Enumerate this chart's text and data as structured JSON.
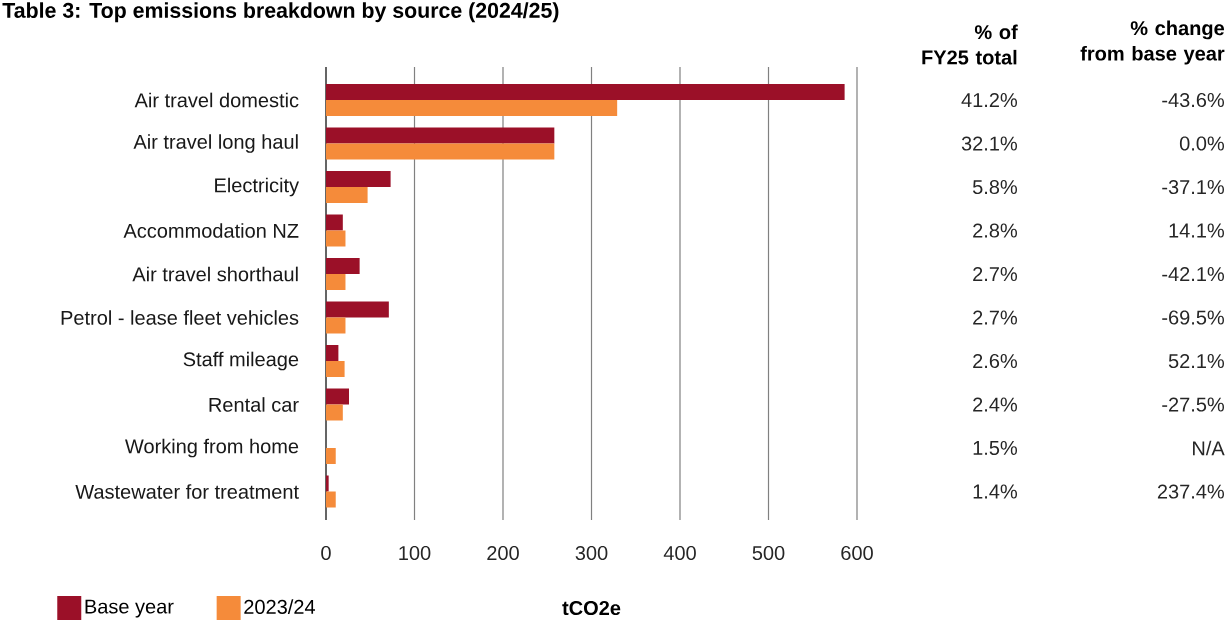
{
  "chart_data": {
    "type": "bar",
    "orientation": "horizontal",
    "title": "Table 3: Top emissions breakdown by source (2024/25)",
    "xlabel": "tCO2e",
    "categories": [
      "Air travel domestic",
      "Air travel long haul",
      "Electricity",
      "Accommodation NZ",
      "Air travel shorthaul",
      "Petrol - lease fleet vehicles",
      "Staff mileage",
      "Rental car",
      "Working from home",
      "Wastewater for treatment"
    ],
    "series": [
      {
        "name": "Base year",
        "color": "#9b1028",
        "values": [
          586,
          258,
          73,
          19,
          38,
          71,
          14,
          26,
          null,
          3
        ]
      },
      {
        "name": "2023/24",
        "color": "#f58b3a",
        "values": [
          329,
          258,
          47,
          22,
          22,
          22,
          21,
          19,
          11,
          11
        ]
      }
    ],
    "xlim": [
      0,
      600
    ],
    "xticks": [
      0,
      100,
      200,
      300,
      400,
      500,
      600
    ],
    "grid": "x",
    "legend": "bottom",
    "annotations": [
      "% of FY25 total",
      "% change from base year",
      "41.2%",
      "32.1%",
      "5.8%",
      "2.8%",
      "2.7%",
      "2.7%",
      "2.6%",
      "2.4%",
      "1.5%",
      "1.4%",
      "-43.6%",
      "0.0%",
      "-37.1%",
      "14.1%",
      "-42.1%",
      "-69.5%",
      "52.1%",
      "-27.5%",
      "N/A",
      "237.4%"
    ]
  }
}
